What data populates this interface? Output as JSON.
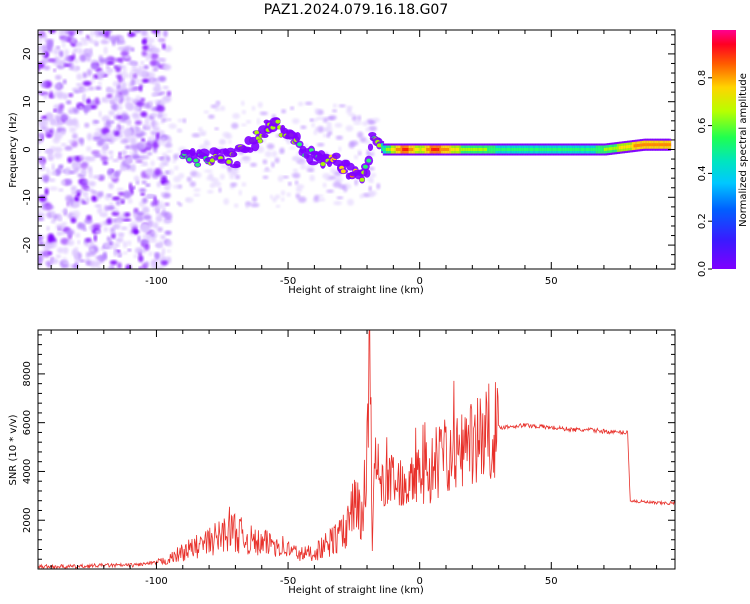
{
  "title": "PAZ1.2024.079.16.18.G07",
  "colors": {
    "snr_line": "#e8302a",
    "axis": "#000000",
    "colormap": [
      "#7f00ff",
      "#2f3dff",
      "#00b2ff",
      "#00e5d0",
      "#25ff6a",
      "#a8ff00",
      "#ffe300",
      "#ff8a00",
      "#ff1e00",
      "#ff007f"
    ]
  },
  "chart_data": [
    {
      "type": "heatmap",
      "xlabel": "Height of straight line (km)",
      "ylabel": "Frequency (Hz)",
      "xlim": [
        -145,
        97
      ],
      "ylim": [
        -25,
        25
      ],
      "xticks": [
        -100,
        -50,
        0,
        50
      ],
      "xtick_labels": [
        "-100",
        "-50",
        "0",
        "50"
      ],
      "yticks": [
        -20,
        -10,
        0,
        10,
        20
      ],
      "ytick_labels": [
        "-20",
        "-10",
        "0",
        "10",
        "20"
      ],
      "colorbar": {
        "label": "Normalized spectral amplitude",
        "range": [
          0,
          1
        ],
        "ticks": [
          0.0,
          0.2,
          0.4,
          0.6,
          0.8
        ],
        "tick_labels": [
          "0.0",
          "0.2",
          "0.4",
          "0.6",
          "0.8"
        ]
      },
      "ridge": [
        {
          "x": -90,
          "f": -1,
          "a": 0.3
        },
        {
          "x": -85,
          "f": -2,
          "a": 0.3
        },
        {
          "x": -80,
          "f": -2,
          "a": 0.35
        },
        {
          "x": -75,
          "f": -1,
          "a": 0.4
        },
        {
          "x": -70,
          "f": -2,
          "a": 0.35
        },
        {
          "x": -65,
          "f": 1,
          "a": 0.35
        },
        {
          "x": -60,
          "f": 3,
          "a": 0.4
        },
        {
          "x": -57,
          "f": 6,
          "a": 0.45
        },
        {
          "x": -52,
          "f": 4,
          "a": 0.35
        },
        {
          "x": -47,
          "f": 2,
          "a": 0.35
        },
        {
          "x": -43,
          "f": -1,
          "a": 0.3
        },
        {
          "x": -38,
          "f": -2,
          "a": 0.35
        },
        {
          "x": -33,
          "f": -2,
          "a": 0.5
        },
        {
          "x": -29,
          "f": -4,
          "a": 0.55
        },
        {
          "x": -25,
          "f": -5,
          "a": 0.6
        },
        {
          "x": -20,
          "f": -5,
          "a": 0.3
        },
        {
          "x": -18,
          "f": 3,
          "a": 0.3
        },
        {
          "x": -14,
          "f": 0,
          "a": 0.45
        },
        {
          "x": -6,
          "f": 0,
          "a": 0.9
        },
        {
          "x": 0,
          "f": 0,
          "a": 0.6
        },
        {
          "x": 5,
          "f": 0,
          "a": 0.9
        },
        {
          "x": 15,
          "f": 0,
          "a": 0.6
        },
        {
          "x": 25,
          "f": 0,
          "a": 0.5
        },
        {
          "x": 40,
          "f": 0,
          "a": 0.45
        },
        {
          "x": 55,
          "f": 0,
          "a": 0.45
        },
        {
          "x": 70,
          "f": 0,
          "a": 0.5
        },
        {
          "x": 85,
          "f": 1,
          "a": 0.8
        },
        {
          "x": 95,
          "f": 1,
          "a": 0.8
        }
      ]
    },
    {
      "type": "line",
      "xlabel": "Height of straight line (km)",
      "ylabel": "SNR (10 * v/v)",
      "xlim": [
        -145,
        97
      ],
      "ylim": [
        0,
        9800
      ],
      "xticks": [
        -100,
        -50,
        0,
        50
      ],
      "xtick_labels": [
        "-100",
        "-50",
        "0",
        "50"
      ],
      "yticks": [
        2000,
        4000,
        6000,
        8000
      ],
      "ytick_labels": [
        "2000",
        "4000",
        "6000",
        "8000"
      ],
      "series": [
        {
          "x": [
            -145,
            -130,
            -120,
            -110,
            -105,
            -100,
            -95,
            -90,
            -85,
            -80,
            -75,
            -72,
            -70,
            -65,
            -60,
            -55,
            -50,
            -45,
            -40,
            -35,
            -30,
            -27,
            -25,
            -22,
            -20,
            -19,
            -18,
            -17,
            -15,
            -12,
            -10,
            -5,
            0,
            5,
            10,
            15,
            20,
            25,
            30,
            35,
            40,
            45,
            50,
            55,
            60,
            65,
            70,
            75,
            79,
            80,
            85,
            90,
            97
          ],
          "y": [
            100,
            100,
            150,
            150,
            200,
            250,
            400,
            700,
            900,
            1100,
            1400,
            1700,
            1500,
            1200,
            1000,
            1100,
            800,
            600,
            700,
            1000,
            1400,
            1700,
            2600,
            2000,
            4800,
            9800,
            1000,
            5000,
            3400,
            3700,
            3500,
            3800,
            3900,
            4100,
            4600,
            4900,
            5300,
            5600,
            5800,
            5850,
            5900,
            5850,
            5800,
            5750,
            5700,
            5700,
            5650,
            5600,
            5600,
            2800,
            2750,
            2700,
            2700
          ]
        }
      ]
    }
  ]
}
